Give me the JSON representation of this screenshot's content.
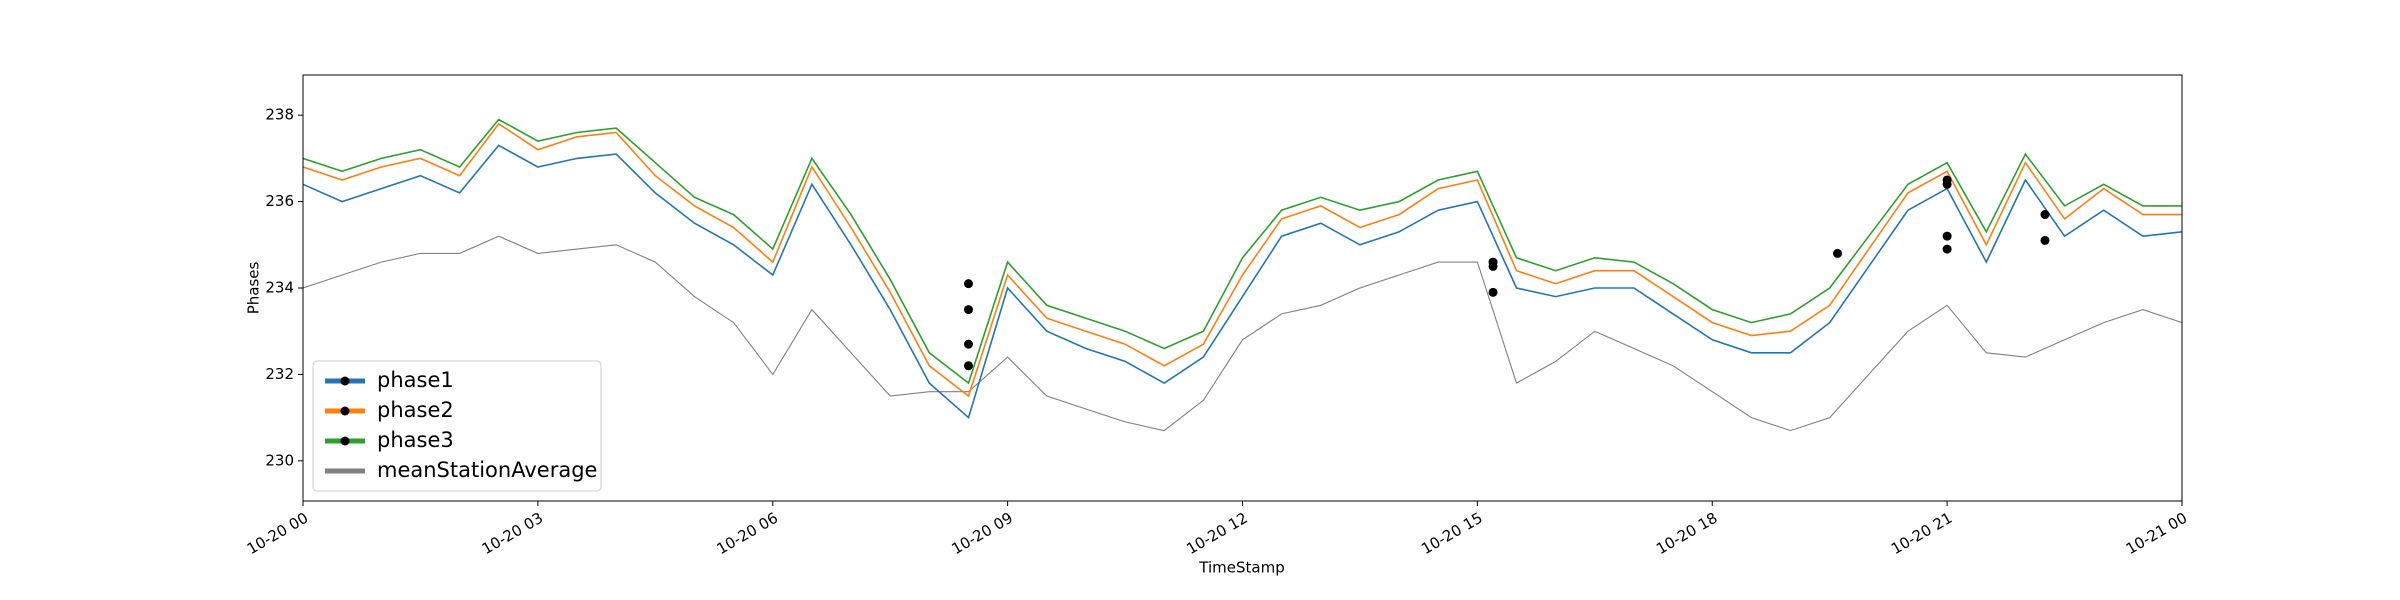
{
  "chart_data": {
    "type": "line",
    "xlabel": "TimeStamp",
    "ylabel": "Phases",
    "x": [
      0,
      0.5,
      1,
      1.5,
      2,
      2.5,
      3,
      3.5,
      4,
      4.5,
      5,
      5.5,
      6,
      6.5,
      7,
      7.5,
      8,
      8.5,
      9,
      9.5,
      10,
      10.5,
      11,
      11.5,
      12,
      12.5,
      13,
      13.5,
      14,
      14.5,
      15,
      15.5,
      16,
      16.5,
      17,
      17.5,
      18,
      18.5,
      19,
      19.5,
      20,
      20.5,
      21,
      21.5,
      22,
      22.5,
      23,
      23.5,
      24
    ],
    "series": [
      {
        "name": "phase1",
        "color": "#1f77b4",
        "values": [
          236.4,
          236.0,
          236.3,
          236.6,
          236.2,
          237.3,
          236.8,
          237.0,
          237.1,
          236.2,
          235.5,
          235.0,
          234.3,
          236.4,
          235.0,
          233.5,
          231.8,
          231.0,
          234.0,
          233.0,
          232.6,
          232.3,
          231.8,
          232.4,
          233.8,
          235.2,
          235.5,
          235.0,
          235.3,
          235.8,
          236.0,
          234.0,
          233.8,
          234.0,
          234.0,
          233.4,
          232.8,
          232.5,
          232.5,
          233.2,
          234.5,
          235.8,
          236.3,
          234.6,
          236.5,
          235.2,
          235.8,
          235.2,
          235.3
        ],
        "markers": {
          "x": [
            8.5,
            8.5,
            15.2,
            21,
            22.25
          ],
          "y": [
            232.2,
            233.5,
            233.9,
            234.9,
            235.1
          ]
        }
      },
      {
        "name": "phase2",
        "color": "#ff7f0e",
        "values": [
          236.8,
          236.5,
          236.8,
          237.0,
          236.6,
          237.8,
          237.2,
          237.5,
          237.6,
          236.6,
          235.9,
          235.4,
          234.6,
          236.8,
          235.4,
          233.9,
          232.2,
          231.5,
          234.3,
          233.3,
          233.0,
          232.7,
          232.2,
          232.7,
          234.3,
          235.6,
          235.9,
          235.4,
          235.7,
          236.3,
          236.5,
          234.4,
          234.1,
          234.4,
          234.4,
          233.8,
          233.2,
          232.9,
          233.0,
          233.6,
          234.9,
          236.2,
          236.7,
          235.0,
          236.9,
          235.6,
          236.3,
          235.7,
          235.7
        ],
        "markers": {
          "x": [
            8.5,
            15.2,
            21
          ],
          "y": [
            232.7,
            234.5,
            235.2
          ]
        }
      },
      {
        "name": "phase3",
        "color": "#2ca02c",
        "values": [
          237.0,
          236.7,
          237.0,
          237.2,
          236.8,
          237.9,
          237.4,
          237.6,
          237.7,
          236.9,
          236.1,
          235.7,
          234.9,
          237.0,
          235.7,
          234.2,
          232.5,
          231.8,
          234.6,
          233.6,
          233.3,
          233.0,
          232.6,
          233.0,
          234.7,
          235.8,
          236.1,
          235.8,
          236.0,
          236.5,
          236.7,
          234.7,
          234.4,
          234.7,
          234.6,
          234.1,
          233.5,
          233.2,
          233.4,
          234.0,
          235.2,
          236.4,
          236.9,
          235.3,
          237.1,
          235.9,
          236.4,
          235.9,
          235.9
        ],
        "markers": {
          "x": [
            8.5,
            15.2,
            19.6,
            21,
            21,
            22.25
          ],
          "y": [
            234.1,
            234.6,
            234.8,
            236.5,
            236.4,
            235.7
          ]
        }
      },
      {
        "name": "meanStationAverage",
        "color": "#808080",
        "values": [
          234.0,
          234.3,
          234.6,
          234.8,
          234.8,
          235.2,
          234.8,
          234.9,
          235.0,
          234.6,
          233.8,
          233.2,
          232.0,
          233.5,
          232.5,
          231.5,
          231.6,
          231.6,
          232.4,
          231.5,
          231.2,
          230.9,
          230.7,
          231.4,
          232.8,
          233.4,
          233.6,
          234.0,
          234.3,
          234.6,
          234.6,
          231.8,
          232.3,
          233.0,
          232.6,
          232.2,
          231.6,
          231.0,
          230.7,
          231.0,
          232.0,
          233.0,
          233.6,
          232.5,
          232.4,
          232.8,
          233.2,
          233.5,
          233.2
        ]
      }
    ],
    "xlim": [
      0,
      24
    ],
    "xticks": [
      {
        "value": 0,
        "label": "10-20 00"
      },
      {
        "value": 3,
        "label": "10-20 03"
      },
      {
        "value": 6,
        "label": "10-20 06"
      },
      {
        "value": 9,
        "label": "10-20 09"
      },
      {
        "value": 12,
        "label": "10-20 12"
      },
      {
        "value": 15,
        "label": "10-20 15"
      },
      {
        "value": 18,
        "label": "10-20 18"
      },
      {
        "value": 21,
        "label": "10-20 21"
      },
      {
        "value": 24,
        "label": "10-21 00"
      }
    ],
    "ylim": [
      229.07,
      238.93
    ],
    "yticks": [
      230,
      232,
      234,
      236,
      238
    ],
    "legend": "lower left"
  }
}
